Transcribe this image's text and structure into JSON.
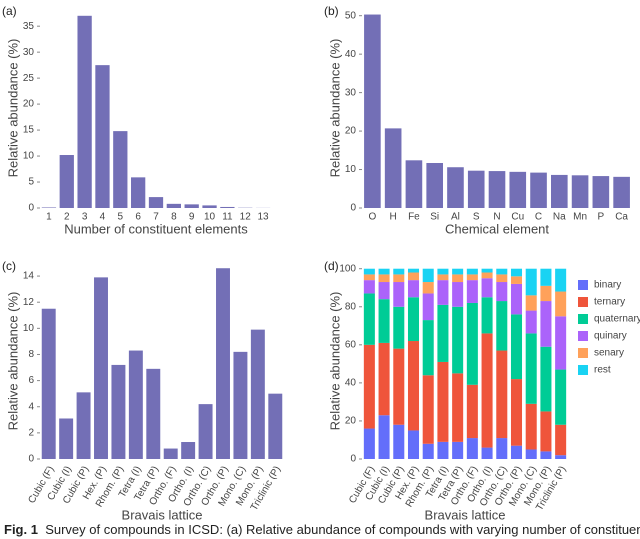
{
  "chart_data": [
    {
      "type": "bar",
      "panel": "(a)",
      "xlabel": "Number of constituent elements",
      "ylabel": "Relative abundance (%)",
      "categories": [
        "1",
        "2",
        "3",
        "4",
        "5",
        "6",
        "7",
        "8",
        "9",
        "10",
        "11",
        "12",
        "13"
      ],
      "values": [
        0.1,
        10.2,
        37,
        27.5,
        14.8,
        5.9,
        2.1,
        0.8,
        0.7,
        0.5,
        0.2,
        0.05,
        0.02
      ],
      "color": "#736fb6",
      "ylim": [
        0,
        38.5
      ],
      "yticks": [
        0,
        5,
        10,
        15,
        20,
        25,
        30,
        35
      ]
    },
    {
      "type": "bar",
      "panel": "(b)",
      "xlabel": "Chemical element",
      "ylabel": "Relative abundance (%)",
      "categories": [
        "O",
        "H",
        "Fe",
        "Si",
        "Al",
        "S",
        "N",
        "Cu",
        "C",
        "Na",
        "Mn",
        "P",
        "Ca"
      ],
      "values": [
        50.3,
        20.7,
        12.4,
        11.7,
        10.6,
        9.7,
        9.6,
        9.4,
        9.2,
        8.6,
        8.5,
        8.3,
        8.1
      ],
      "color": "#736fb6",
      "ylim": [
        0,
        52
      ],
      "yticks": [
        0,
        10,
        20,
        30,
        40,
        50
      ]
    },
    {
      "type": "bar",
      "panel": "(c)",
      "xlabel": "Bravais lattice",
      "ylabel": "Relative abundance (%)",
      "categories": [
        "Cubic (F)",
        "Cubic (I)",
        "Cubic (P)",
        "Hex. (P)",
        "Rhom. (P)",
        "Tetra (I)",
        "Tetra (P)",
        "Ortho. (F)",
        "Ortho. (I)",
        "Ortho. (C)",
        "Ortho. (P)",
        "Mono. (C)",
        "Mono. (P)",
        "Triclinic (P)"
      ],
      "values": [
        11.5,
        3.1,
        5.1,
        13.9,
        7.2,
        8.3,
        6.9,
        0.8,
        1.3,
        4.2,
        14.6,
        8.2,
        9.9,
        5.0
      ],
      "color": "#736fb6",
      "ylim": [
        0,
        15
      ],
      "yticks": [
        0,
        2,
        4,
        6,
        8,
        10,
        12,
        14
      ]
    },
    {
      "type": "stacked_bar",
      "panel": "(d)",
      "xlabel": "Bravais lattice",
      "ylabel": "Relative abundance (%)",
      "categories": [
        "Cubic (F)",
        "Cubic (I)",
        "Cubic (P)",
        "Hex. (P)",
        "Rhom. (P)",
        "Tetra (I)",
        "Tetra (P)",
        "Ortho. (F)",
        "Ortho. (I)",
        "Ortho. (C)",
        "Ortho. (P)",
        "Mono. (C)",
        "Mono. (P)",
        "Triclinic (P)"
      ],
      "series": [
        {
          "name": "binary",
          "color": "#636efa",
          "values": [
            16,
            23,
            18,
            15,
            8,
            9,
            9,
            11,
            6,
            11,
            7,
            5,
            4,
            2
          ]
        },
        {
          "name": "ternary",
          "color": "#ef553b",
          "values": [
            44,
            38,
            40,
            47,
            36,
            42,
            36,
            28,
            60,
            46,
            35,
            24,
            21,
            16
          ]
        },
        {
          "name": "quaternary",
          "color": "#00cc96",
          "values": [
            27,
            23,
            22,
            23,
            29,
            30,
            35,
            43,
            19,
            26,
            34,
            37,
            34,
            29
          ]
        },
        {
          "name": "quinary",
          "color": "#ab63fa",
          "values": [
            7,
            9,
            13,
            9,
            14,
            13,
            13,
            12,
            10,
            10,
            16,
            12,
            24,
            28
          ]
        },
        {
          "name": "senary",
          "color": "#ffa15a",
          "values": [
            3,
            4,
            4,
            4,
            6,
            3,
            4,
            3,
            3,
            4,
            4,
            8,
            8,
            13
          ]
        },
        {
          "name": "rest",
          "color": "#19d3f3",
          "values": [
            3,
            3,
            3,
            2,
            7,
            3,
            3,
            3,
            2,
            3,
            4,
            14,
            9,
            12
          ]
        }
      ],
      "ylim": [
        0,
        103
      ],
      "yticks": [
        0,
        20,
        40,
        60,
        80,
        100
      ]
    }
  ],
  "caption_label": "Fig. 1",
  "caption": "Survey of compounds in ICSD: (a) Relative abundance of compounds with varying number of constituent"
}
